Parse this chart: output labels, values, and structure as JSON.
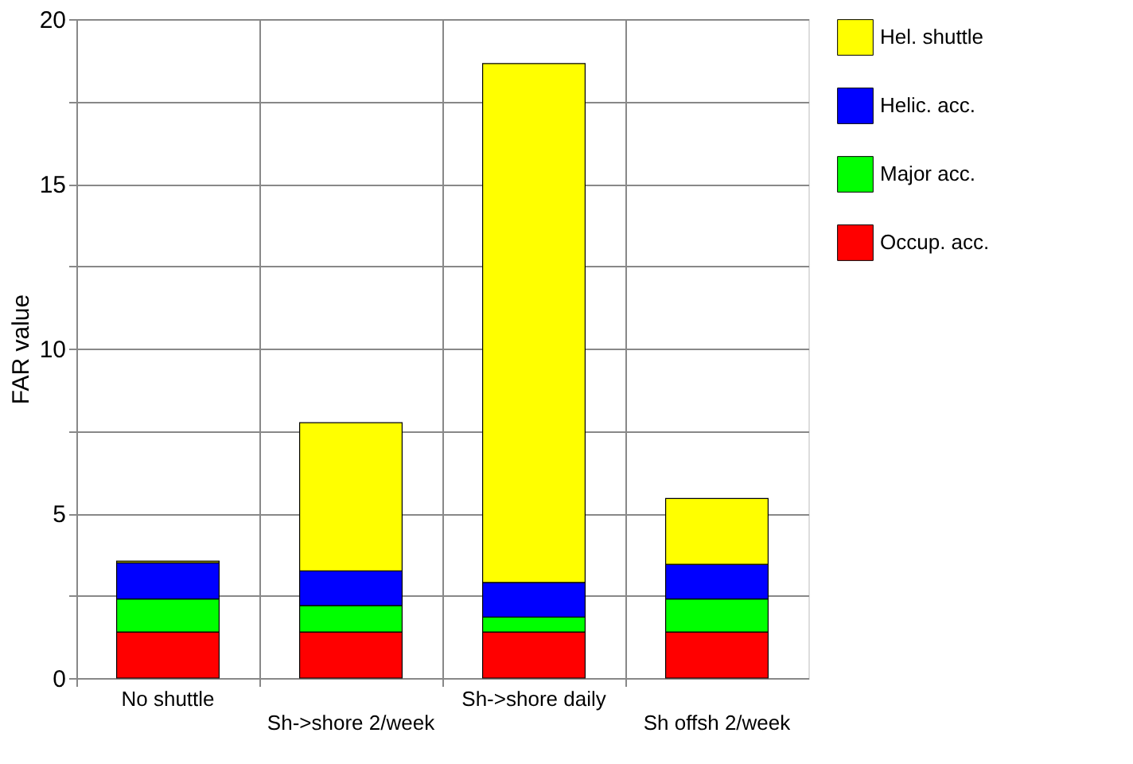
{
  "chart_data": {
    "type": "bar",
    "stacked": true,
    "ylabel": "FAR value",
    "categories": [
      "No shuttle",
      "Sh->shore 2/week",
      "Sh->shore daily",
      "Sh offsh 2/week"
    ],
    "series": [
      {
        "name": "Occup. acc.",
        "color": "#ff0000",
        "values": [
          1.4,
          1.4,
          1.4,
          1.4
        ]
      },
      {
        "name": "Major acc.",
        "color": "#00ff00",
        "values": [
          1.0,
          0.8,
          0.45,
          1.0
        ]
      },
      {
        "name": "Helic. acc.",
        "color": "#0000ff",
        "values": [
          1.1,
          1.05,
          1.05,
          1.05
        ]
      },
      {
        "name": "Hel. shuttle",
        "color": "#ffff00",
        "values": [
          0.05,
          4.5,
          15.75,
          2.0
        ]
      }
    ],
    "ylim": [
      0,
      20
    ],
    "yticks": [
      0,
      {
        "value": 2.5,
        "label": null
      },
      5,
      {
        "value": 7.5,
        "label": null
      },
      10,
      {
        "value": 12.5,
        "label": null
      },
      15,
      {
        "value": 17.5,
        "label": null
      },
      20
    ],
    "grid": true,
    "legend": "right"
  }
}
